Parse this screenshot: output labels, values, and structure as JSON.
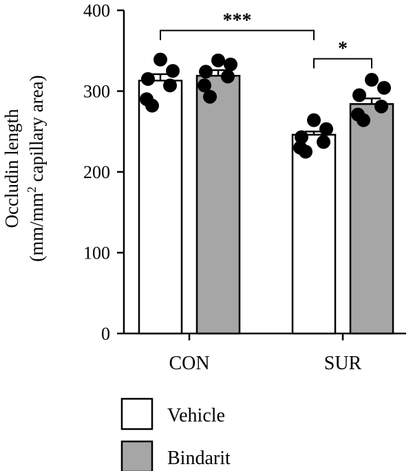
{
  "chart_data": {
    "type": "bar",
    "categories": [
      "CON",
      "SUR"
    ],
    "ylabel_line1": "Occludin length",
    "ylabel_line2_pre": "(mm/mm",
    "ylabel_line2_sup": "2",
    "ylabel_line2_post": " capillary area)",
    "ylim": [
      0,
      400
    ],
    "yticks": [
      "0",
      "100",
      "200",
      "300",
      "400"
    ],
    "legend_position": "bottom-left",
    "series": [
      {
        "name": "Vehicle",
        "color": "#ffffff",
        "values": [
          313,
          246
        ],
        "sem": [
          8,
          4
        ],
        "points": [
          [
            339,
            325,
            315,
            307,
            290,
            282
          ],
          [
            264,
            253,
            243,
            237,
            230,
            225
          ]
        ]
      },
      {
        "name": "Bindarit",
        "color": "#a6a6a6",
        "values": [
          319,
          284
        ],
        "sem": [
          7,
          7
        ],
        "points": [
          [
            338,
            333,
            324,
            318,
            307,
            293
          ],
          [
            314,
            304,
            295,
            281,
            271,
            264
          ]
        ]
      }
    ],
    "significance": [
      {
        "label": "***",
        "from": "CON-Vehicle",
        "to": "SUR-Vehicle",
        "y": 375
      },
      {
        "label": "*",
        "from": "SUR-Vehicle",
        "to": "SUR-Bindarit",
        "y": 340
      }
    ]
  }
}
